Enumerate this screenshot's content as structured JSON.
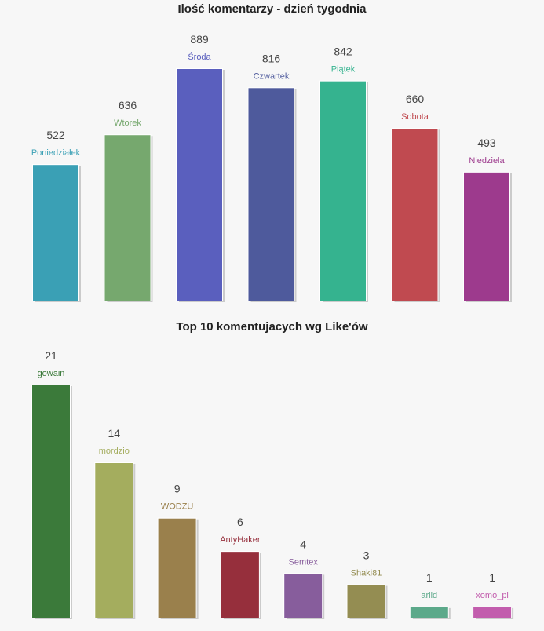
{
  "chart_data": [
    {
      "type": "bar",
      "title": "Ilość komentarzy - dzień tygodnia",
      "categories": [
        "Poniedziałek",
        "Wtorek",
        "Środa",
        "Czwartek",
        "Piątek",
        "Sobota",
        "Niedziela"
      ],
      "values": [
        522,
        636,
        889,
        816,
        842,
        660,
        493
      ],
      "colors": [
        "#3aa0b5",
        "#76a86e",
        "#5a5fbe",
        "#4e5a9c",
        "#35b38f",
        "#c04a50",
        "#9d3a8d"
      ],
      "xlabel": "",
      "ylabel": "",
      "ylim": [
        0,
        889
      ],
      "grid": false,
      "legend": "none"
    },
    {
      "type": "bar",
      "title": "Top 10 komentujacych wg Like'ów",
      "categories": [
        "gowain",
        "mordzio",
        "WODZU",
        "AntyHaker",
        "Semtex",
        "Shaki81",
        "arlid",
        "xomo_pl"
      ],
      "values": [
        21,
        14,
        9,
        6,
        4,
        3,
        1,
        1
      ],
      "colors": [
        "#3b7a3a",
        "#a4ad5e",
        "#9a804c",
        "#962f3c",
        "#875d9c",
        "#948d52",
        "#5ca98a",
        "#c25dad"
      ],
      "xlabel": "",
      "ylabel": "",
      "ylim": [
        0,
        21
      ],
      "grid": false,
      "legend": "none"
    }
  ]
}
